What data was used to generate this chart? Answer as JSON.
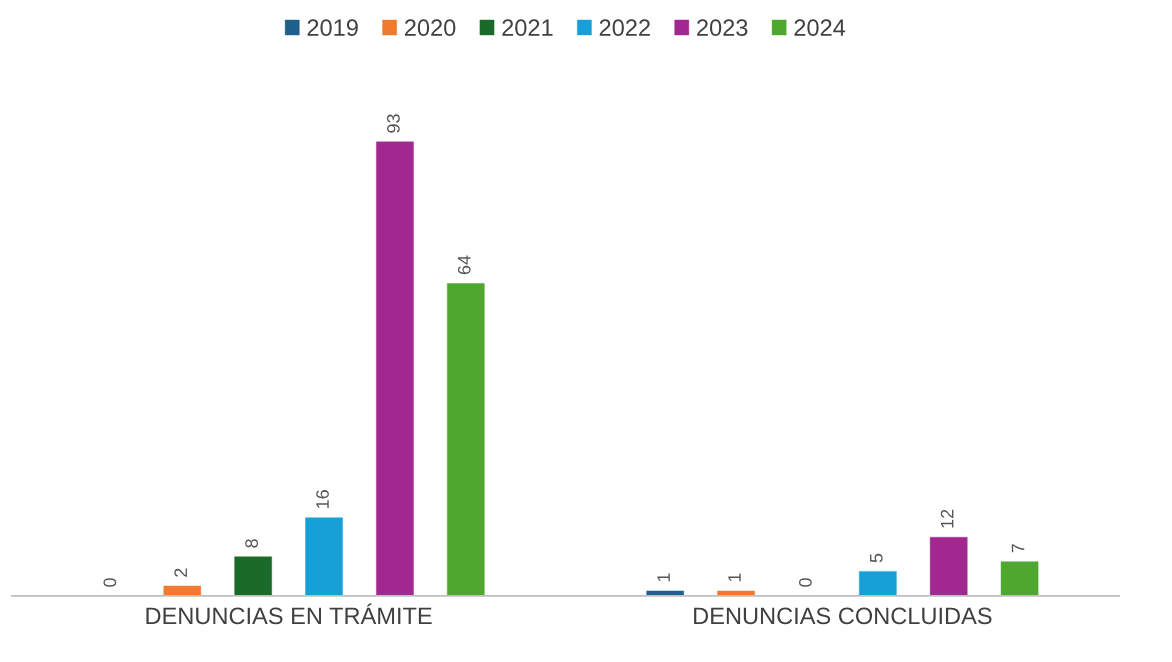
{
  "chart_data": {
    "type": "bar",
    "categories": [
      "DENUNCIAS EN TRÁMITE",
      "DENUNCIAS CONCLUIDAS"
    ],
    "series": [
      {
        "name": "2019",
        "color": "#1f5f8b",
        "values": [
          0,
          1
        ]
      },
      {
        "name": "2020",
        "color": "#f07a30",
        "values": [
          2,
          1
        ]
      },
      {
        "name": "2021",
        "color": "#1a6b2a",
        "values": [
          8,
          0
        ]
      },
      {
        "name": "2022",
        "color": "#17a0d8",
        "values": [
          16,
          5
        ]
      },
      {
        "name": "2023",
        "color": "#a0288f",
        "values": [
          93,
          12
        ]
      },
      {
        "name": "2024",
        "color": "#4ea830",
        "values": [
          64,
          7
        ]
      }
    ],
    "data_labels": true,
    "legend": "top",
    "grid": false
  }
}
